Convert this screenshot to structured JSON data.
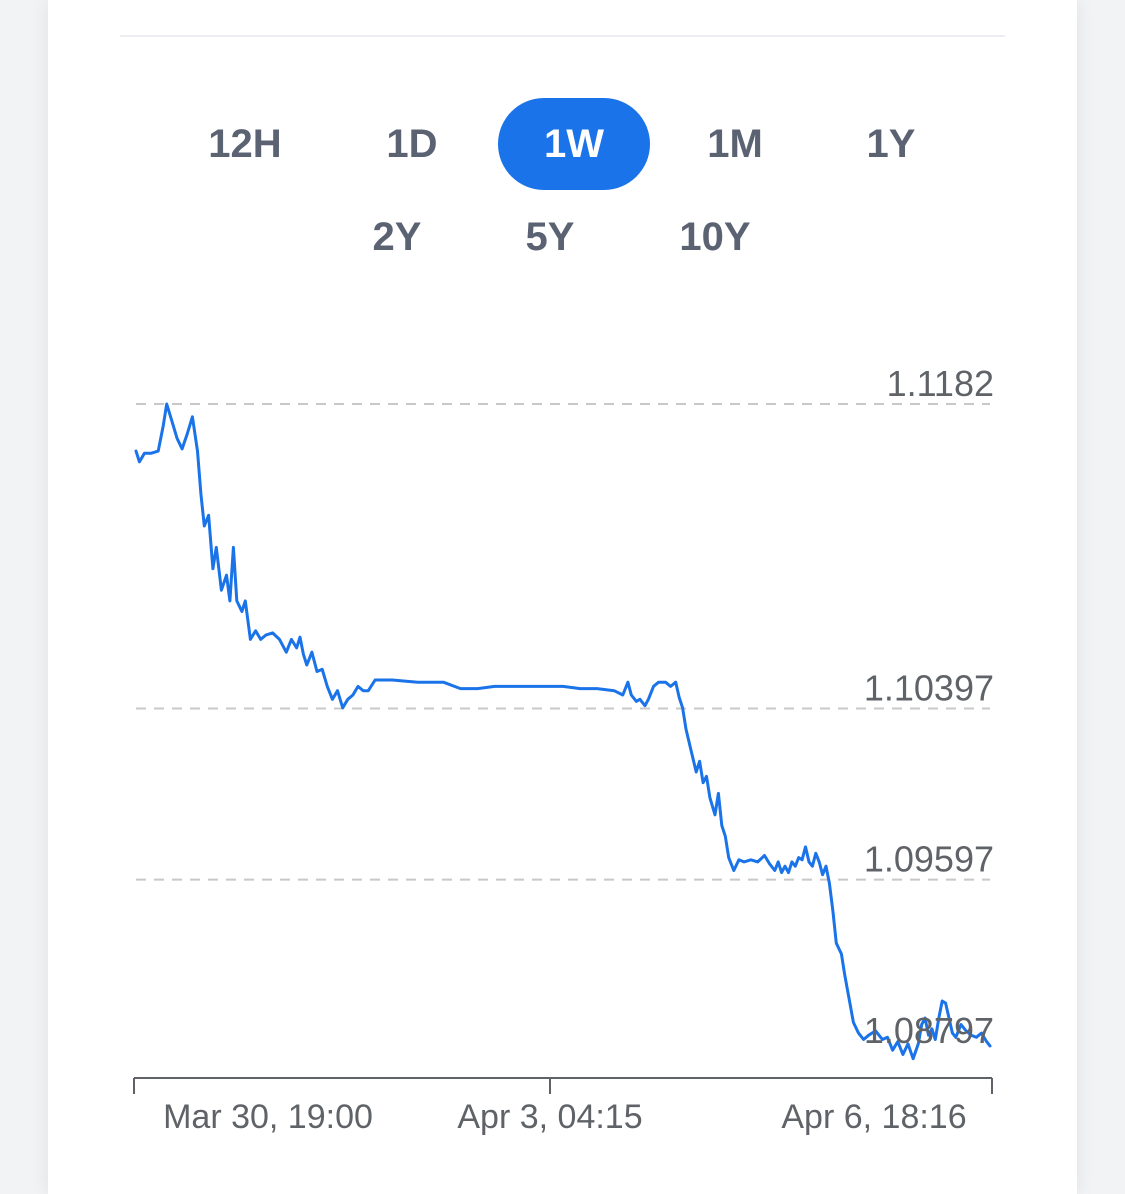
{
  "ranges": [
    {
      "label": "12H",
      "active": false
    },
    {
      "label": "1D",
      "active": false
    },
    {
      "label": "1W",
      "active": true
    },
    {
      "label": "1M",
      "active": false
    },
    {
      "label": "1Y",
      "active": false
    },
    {
      "label": "2Y",
      "active": false
    },
    {
      "label": "5Y",
      "active": false
    },
    {
      "label": "10Y",
      "active": false
    }
  ],
  "colors": {
    "line": "#1a73e8",
    "active_button": "#1a73e8",
    "grid": "#c8c8c8",
    "axis": "#5f6368"
  },
  "chart_data": {
    "type": "line",
    "yticks": [
      {
        "value": 1.1182,
        "label": "1.1182"
      },
      {
        "value": 1.10397,
        "label": "1.10397"
      },
      {
        "value": 1.09597,
        "label": "1.09597"
      },
      {
        "value": 1.08797,
        "label": "1.08797"
      }
    ],
    "xticks": [
      {
        "t": 0.04,
        "label": "Mar 30, 19:00"
      },
      {
        "t": 0.48,
        "label": "Apr 3, 04:15"
      },
      {
        "t": 0.96,
        "label": "Apr 6, 18:16"
      }
    ],
    "ylim": [
      1.0867,
      1.1182
    ],
    "xlim": [
      0,
      1
    ],
    "grid": true,
    "series": [
      {
        "points": [
          [
            0.0,
            1.116
          ],
          [
            0.004,
            1.1155
          ],
          [
            0.01,
            1.1159
          ],
          [
            0.018,
            1.1159
          ],
          [
            0.026,
            1.116
          ],
          [
            0.032,
            1.1172
          ],
          [
            0.036,
            1.1182
          ],
          [
            0.042,
            1.1174
          ],
          [
            0.048,
            1.1166
          ],
          [
            0.054,
            1.1161
          ],
          [
            0.06,
            1.1168
          ],
          [
            0.066,
            1.1176
          ],
          [
            0.072,
            1.116
          ],
          [
            0.076,
            1.114
          ],
          [
            0.08,
            1.1125
          ],
          [
            0.085,
            1.113
          ],
          [
            0.09,
            1.1105
          ],
          [
            0.094,
            1.1115
          ],
          [
            0.1,
            1.1095
          ],
          [
            0.106,
            1.1102
          ],
          [
            0.11,
            1.109
          ],
          [
            0.114,
            1.1115
          ],
          [
            0.118,
            1.109
          ],
          [
            0.124,
            1.1085
          ],
          [
            0.128,
            1.109
          ],
          [
            0.134,
            1.1072
          ],
          [
            0.14,
            1.1076
          ],
          [
            0.146,
            1.1072
          ],
          [
            0.152,
            1.1074
          ],
          [
            0.16,
            1.1075
          ],
          [
            0.168,
            1.1072
          ],
          [
            0.176,
            1.1066
          ],
          [
            0.182,
            1.1072
          ],
          [
            0.188,
            1.1068
          ],
          [
            0.192,
            1.1073
          ],
          [
            0.196,
            1.1065
          ],
          [
            0.2,
            1.106
          ],
          [
            0.206,
            1.1066
          ],
          [
            0.212,
            1.1057
          ],
          [
            0.218,
            1.1058
          ],
          [
            0.224,
            1.105
          ],
          [
            0.23,
            1.1044
          ],
          [
            0.236,
            1.1048
          ],
          [
            0.242,
            1.104
          ],
          [
            0.248,
            1.1044
          ],
          [
            0.254,
            1.1046
          ],
          [
            0.26,
            1.105
          ],
          [
            0.266,
            1.1048
          ],
          [
            0.272,
            1.1048
          ],
          [
            0.28,
            1.1053
          ],
          [
            0.3,
            1.1053
          ],
          [
            0.33,
            1.1052
          ],
          [
            0.36,
            1.1052
          ],
          [
            0.38,
            1.1049
          ],
          [
            0.4,
            1.1049
          ],
          [
            0.42,
            1.105
          ],
          [
            0.44,
            1.105
          ],
          [
            0.46,
            1.105
          ],
          [
            0.48,
            1.105
          ],
          [
            0.5,
            1.105
          ],
          [
            0.52,
            1.1049
          ],
          [
            0.54,
            1.1049
          ],
          [
            0.56,
            1.1048
          ],
          [
            0.57,
            1.1046
          ],
          [
            0.576,
            1.1052
          ],
          [
            0.58,
            1.1046
          ],
          [
            0.586,
            1.1043
          ],
          [
            0.59,
            1.1044
          ],
          [
            0.596,
            1.1041
          ],
          [
            0.6,
            1.1044
          ],
          [
            0.606,
            1.105
          ],
          [
            0.612,
            1.1052
          ],
          [
            0.62,
            1.1052
          ],
          [
            0.626,
            1.105
          ],
          [
            0.632,
            1.1052
          ],
          [
            0.636,
            1.1045
          ],
          [
            0.64,
            1.104
          ],
          [
            0.644,
            1.103
          ],
          [
            0.65,
            1.102
          ],
          [
            0.656,
            1.101
          ],
          [
            0.66,
            1.1015
          ],
          [
            0.664,
            1.1005
          ],
          [
            0.668,
            1.1008
          ],
          [
            0.672,
            1.0998
          ],
          [
            0.678,
            1.099
          ],
          [
            0.682,
            1.1
          ],
          [
            0.686,
            1.0985
          ],
          [
            0.69,
            1.098
          ],
          [
            0.694,
            1.097
          ],
          [
            0.7,
            1.0964
          ],
          [
            0.706,
            1.0969
          ],
          [
            0.712,
            1.0968
          ],
          [
            0.72,
            1.0969
          ],
          [
            0.728,
            1.0968
          ],
          [
            0.736,
            1.0971
          ],
          [
            0.742,
            1.0967
          ],
          [
            0.748,
            1.0964
          ],
          [
            0.752,
            1.0968
          ],
          [
            0.756,
            1.0963
          ],
          [
            0.76,
            1.0966
          ],
          [
            0.764,
            1.0963
          ],
          [
            0.768,
            1.0968
          ],
          [
            0.772,
            1.0966
          ],
          [
            0.776,
            1.097
          ],
          [
            0.78,
            1.0969
          ],
          [
            0.784,
            1.0975
          ],
          [
            0.788,
            1.0968
          ],
          [
            0.792,
            1.0966
          ],
          [
            0.796,
            1.0972
          ],
          [
            0.8,
            1.0968
          ],
          [
            0.804,
            1.0962
          ],
          [
            0.808,
            1.0966
          ],
          [
            0.812,
            1.0958
          ],
          [
            0.816,
            1.0945
          ],
          [
            0.82,
            1.093
          ],
          [
            0.826,
            1.0925
          ],
          [
            0.83,
            1.0915
          ],
          [
            0.836,
            1.0902
          ],
          [
            0.84,
            1.0893
          ],
          [
            0.846,
            1.0888
          ],
          [
            0.852,
            1.0885
          ],
          [
            0.858,
            1.0887
          ],
          [
            0.866,
            1.0889
          ],
          [
            0.874,
            1.0885
          ],
          [
            0.88,
            1.0886
          ],
          [
            0.886,
            1.088
          ],
          [
            0.892,
            1.0884
          ],
          [
            0.898,
            1.0878
          ],
          [
            0.904,
            1.0883
          ],
          [
            0.91,
            1.0876
          ],
          [
            0.916,
            1.0883
          ],
          [
            0.92,
            1.0892
          ],
          [
            0.924,
            1.0895
          ],
          [
            0.928,
            1.0887
          ],
          [
            0.932,
            1.089
          ],
          [
            0.936,
            1.0885
          ],
          [
            0.94,
            1.0895
          ],
          [
            0.944,
            1.0903
          ],
          [
            0.948,
            1.0902
          ],
          [
            0.952,
            1.0895
          ],
          [
            0.956,
            1.0888
          ],
          [
            0.96,
            1.0886
          ],
          [
            0.966,
            1.0892
          ],
          [
            0.972,
            1.0889
          ],
          [
            0.978,
            1.0887
          ],
          [
            0.984,
            1.0886
          ],
          [
            0.99,
            1.0888
          ],
          [
            0.996,
            1.0884
          ],
          [
            1.0,
            1.0882
          ]
        ]
      }
    ]
  }
}
